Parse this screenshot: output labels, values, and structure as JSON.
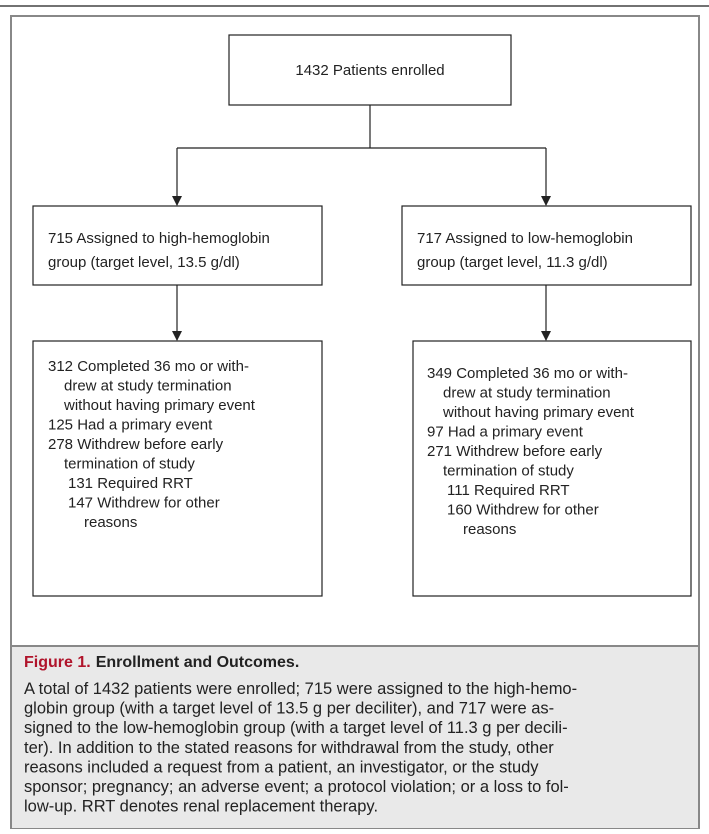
{
  "nodes": [
    {
      "lines": [
        "1432 Patients enrolled"
      ]
    },
    {
      "lines": [
        "715 Assigned to high-hemoglobin",
        "group (target level, 13.5 g/dl)"
      ]
    },
    {
      "lines": [
        "717 Assigned to low-hemoglobin",
        "group (target level, 11.3 g/dl)"
      ]
    },
    {
      "lines": [
        "312 Completed 36 mo or with-",
        "drew at study termination",
        "without having primary event",
        "125 Had a primary event",
        "278 Withdrew before early",
        "termination of study",
        "131 Required RRT",
        "147 Withdrew for other",
        "reasons"
      ]
    },
    {
      "lines": [
        "349 Completed 36 mo or with-",
        "drew at study termination",
        "without having primary event",
        "97 Had a primary event",
        "271 Withdrew before early",
        "termination of study",
        "111 Required RRT",
        "160 Withdrew for other",
        "reasons"
      ]
    }
  ],
  "caption": {
    "label": "Figure 1.",
    "title": "Enrollment and Outcomes.",
    "lines": [
      "A total of 1432 patients were enrolled; 715 were assigned to the high-hemo-",
      "globin group (with a target level of 13.5 g per deciliter), and 717 were as-",
      "signed to the low-hemoglobin group (with a target level of 11.3 g per decili-",
      "ter). In addition to the stated reasons for withdrawal from the study, other",
      "reasons included a request from a patient, an investigator, or the study",
      "sponsor; pregnancy; an adverse event; a protocol violation; or a loss to fol-",
      "low-up. RRT denotes renal replacement therapy."
    ]
  }
}
